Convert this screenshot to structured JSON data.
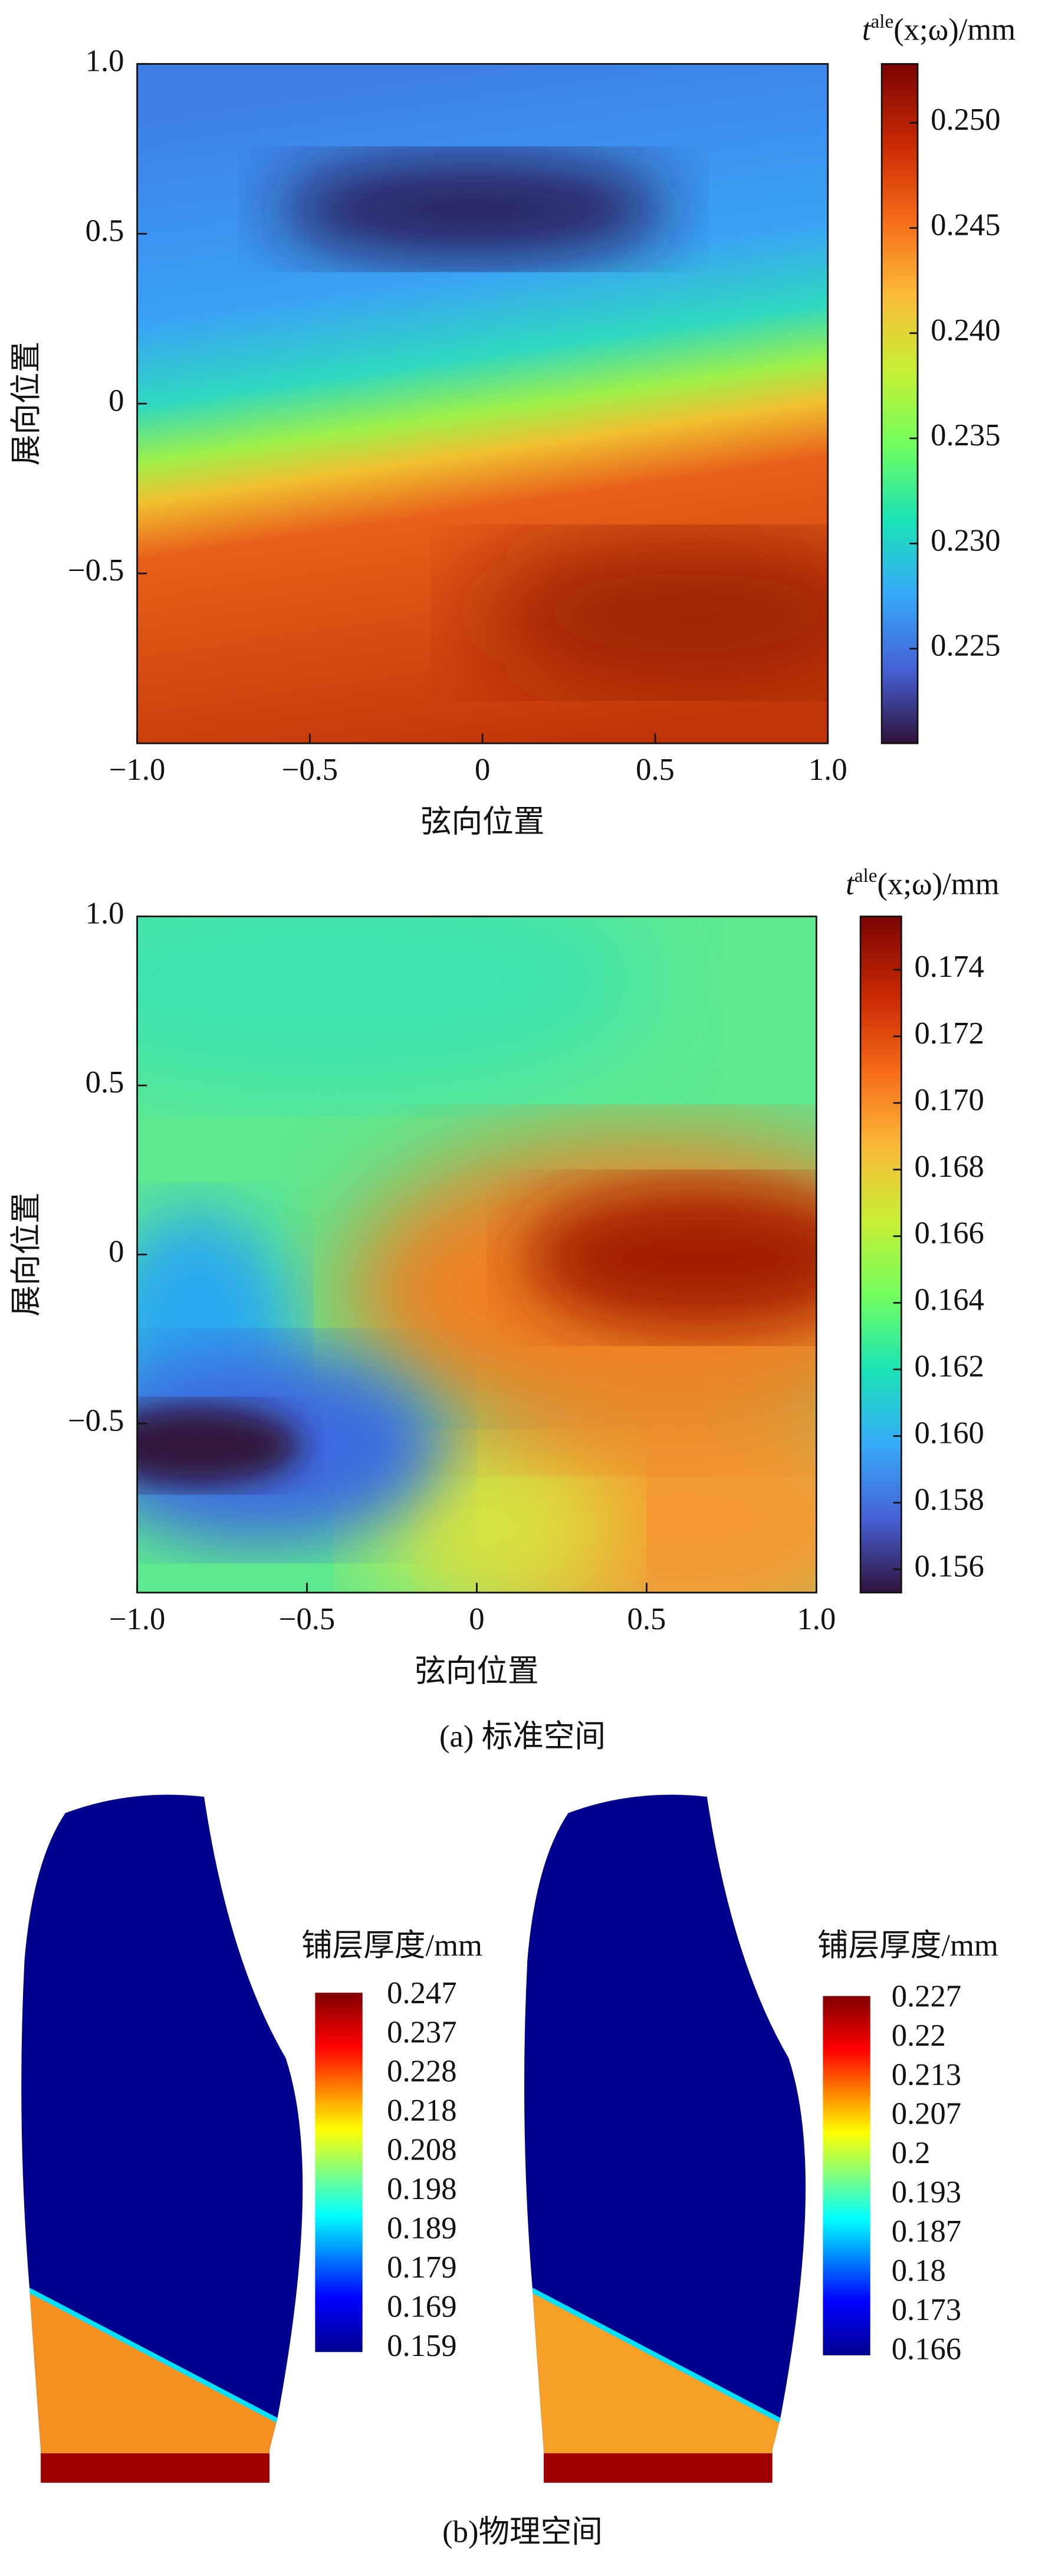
{
  "chart_data": [
    {
      "type": "heatmap",
      "xlabel": "弦向位置",
      "ylabel": "展向位置",
      "colorbar_title": [
        "t",
        "ale",
        "(x;ω)/mm"
      ],
      "xlim": [
        -1,
        1
      ],
      "xticks": [
        {
          "value": -1,
          "label": "−1.0"
        },
        {
          "value": -0.5,
          "label": "−0.5"
        },
        0,
        0.5,
        {
          "value": 1,
          "label": "1.0"
        }
      ],
      "ylim": [
        -1,
        1
      ],
      "yticks": [
        {
          "value": 1,
          "label": "1.0"
        },
        0.5,
        0,
        {
          "value": -0.5,
          "label": "−0.5"
        }
      ],
      "clim": [
        0.2205,
        0.2528
      ],
      "cticks": [
        0.225,
        {
          "value": 0.23,
          "label": "0.230"
        },
        0.235,
        {
          "value": 0.24,
          "label": "0.240"
        },
        0.245,
        {
          "value": 0.25,
          "label": "0.250"
        }
      ]
    },
    {
      "type": "heatmap",
      "xlabel": "弦向位置",
      "ylabel": "展向位置",
      "colorbar_title": [
        "t",
        "ale",
        "(x;ω)/mm"
      ],
      "xlim": [
        -1,
        1
      ],
      "xticks": [
        {
          "value": -1,
          "label": "−1.0"
        },
        {
          "value": -0.5,
          "label": "−0.5"
        },
        0,
        0.5,
        {
          "value": 1,
          "label": "1.0"
        }
      ],
      "ylim": [
        -1,
        1
      ],
      "yticks": [
        {
          "value": 1,
          "label": "1.0"
        },
        0.5,
        0,
        {
          "value": -0.5,
          "label": "−0.5"
        }
      ],
      "clim": [
        0.1553,
        0.1756
      ],
      "cticks": [
        0.156,
        0.158,
        {
          "value": 0.16,
          "label": "0.160"
        },
        0.162,
        0.164,
        0.166,
        0.168,
        {
          "value": 0.17,
          "label": "0.170"
        },
        0.172,
        0.174
      ]
    },
    {
      "type": "contour",
      "legend_title": "铺层厚度/mm",
      "levels": [
        0.247,
        0.237,
        0.228,
        0.218,
        0.208,
        0.198,
        0.189,
        0.179,
        0.169,
        0.159
      ]
    },
    {
      "type": "contour",
      "legend_title": "铺层厚度/mm",
      "levels": [
        0.227,
        0.22,
        0.213,
        0.207,
        0.2,
        0.193,
        0.187,
        0.18,
        0.173,
        0.166
      ]
    }
  ],
  "captions": [
    "(a) 标准空间",
    "(b)物理空间"
  ]
}
